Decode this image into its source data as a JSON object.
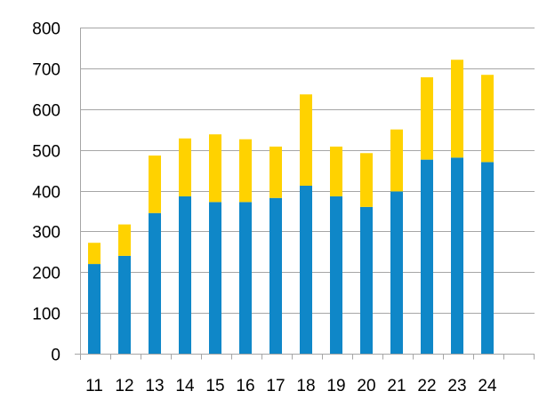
{
  "chart_data": {
    "type": "bar",
    "stacked": true,
    "title": "",
    "xlabel": "",
    "ylabel": "",
    "categories": [
      "11",
      "12",
      "13",
      "14",
      "15",
      "16",
      "17",
      "18",
      "19",
      "20",
      "21",
      "22",
      "23",
      "24"
    ],
    "series": [
      {
        "color": "#0f87c8",
        "values": [
          220,
          240,
          345,
          386,
          372,
          372,
          382,
          412,
          386,
          360,
          398,
          476,
          481,
          470
        ]
      },
      {
        "color": "#ffd200",
        "values": [
          52,
          77,
          141,
          142,
          166,
          154,
          126,
          224,
          122,
          132,
          152,
          202,
          240,
          214
        ]
      }
    ],
    "ylim": [
      0,
      800
    ],
    "yticks": [
      "0",
      "100",
      "200",
      "300",
      "400",
      "500",
      "600",
      "700",
      "800"
    ],
    "grid": true,
    "legend": "none"
  }
}
